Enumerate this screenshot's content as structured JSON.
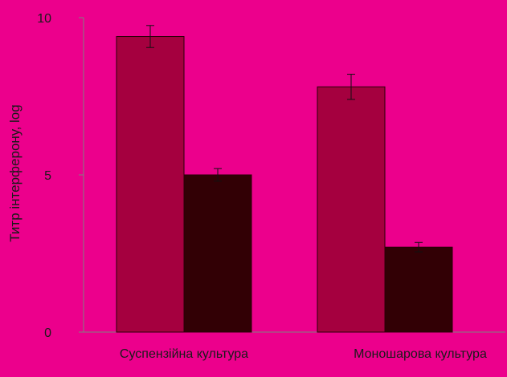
{
  "chart_data": {
    "type": "bar",
    "title": "",
    "xlabel": "",
    "ylabel": "Титр інтерферону, log",
    "ylim": [
      0,
      10
    ],
    "yticks": [
      0,
      5,
      10
    ],
    "categories": [
      "Суспензійна культура",
      "Моношарова культура"
    ],
    "series": [
      {
        "values": [
          9.4,
          7.8
        ],
        "errors": [
          0.35,
          0.4
        ],
        "color": "#a5003f"
      },
      {
        "values": [
          5.0,
          2.7
        ],
        "errors": [
          0.2,
          0.15
        ],
        "color": "#320005"
      }
    ],
    "grid": false,
    "legend": "none"
  },
  "colors": {
    "background": "#ec008c",
    "axis": "#808080"
  }
}
